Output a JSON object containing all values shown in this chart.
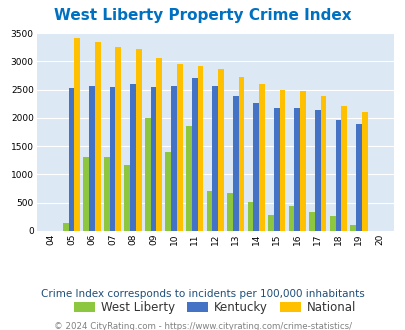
{
  "title": "West Liberty Property Crime Index",
  "years": [
    2004,
    2005,
    2006,
    2007,
    2008,
    2009,
    2010,
    2011,
    2012,
    2013,
    2014,
    2015,
    2016,
    2017,
    2018,
    2019,
    2020
  ],
  "west_liberty": [
    0,
    150,
    1300,
    1300,
    1170,
    2000,
    1400,
    1850,
    700,
    680,
    510,
    275,
    450,
    340,
    270,
    100,
    0
  ],
  "kentucky": [
    0,
    2530,
    2560,
    2540,
    2600,
    2540,
    2560,
    2700,
    2560,
    2380,
    2260,
    2180,
    2180,
    2140,
    1970,
    1900,
    0
  ],
  "national": [
    0,
    3420,
    3340,
    3260,
    3210,
    3050,
    2960,
    2910,
    2860,
    2730,
    2600,
    2500,
    2470,
    2380,
    2210,
    2110,
    0
  ],
  "bar_width": 0.28,
  "colors": {
    "west_liberty": "#8dc63f",
    "kentucky": "#4472c4",
    "national": "#ffc000"
  },
  "ylim": [
    0,
    3500
  ],
  "yticks": [
    0,
    500,
    1000,
    1500,
    2000,
    2500,
    3000,
    3500
  ],
  "legend_labels": [
    "West Liberty",
    "Kentucky",
    "National"
  ],
  "subtitle": "Crime Index corresponds to incidents per 100,000 inhabitants",
  "footer": "© 2024 CityRating.com - https://www.cityrating.com/crime-statistics/",
  "bg_color": "#dce9f5",
  "title_color": "#0070c0",
  "subtitle_color": "#1f4e79",
  "footer_color": "#808080",
  "grid_color": "#ffffff"
}
